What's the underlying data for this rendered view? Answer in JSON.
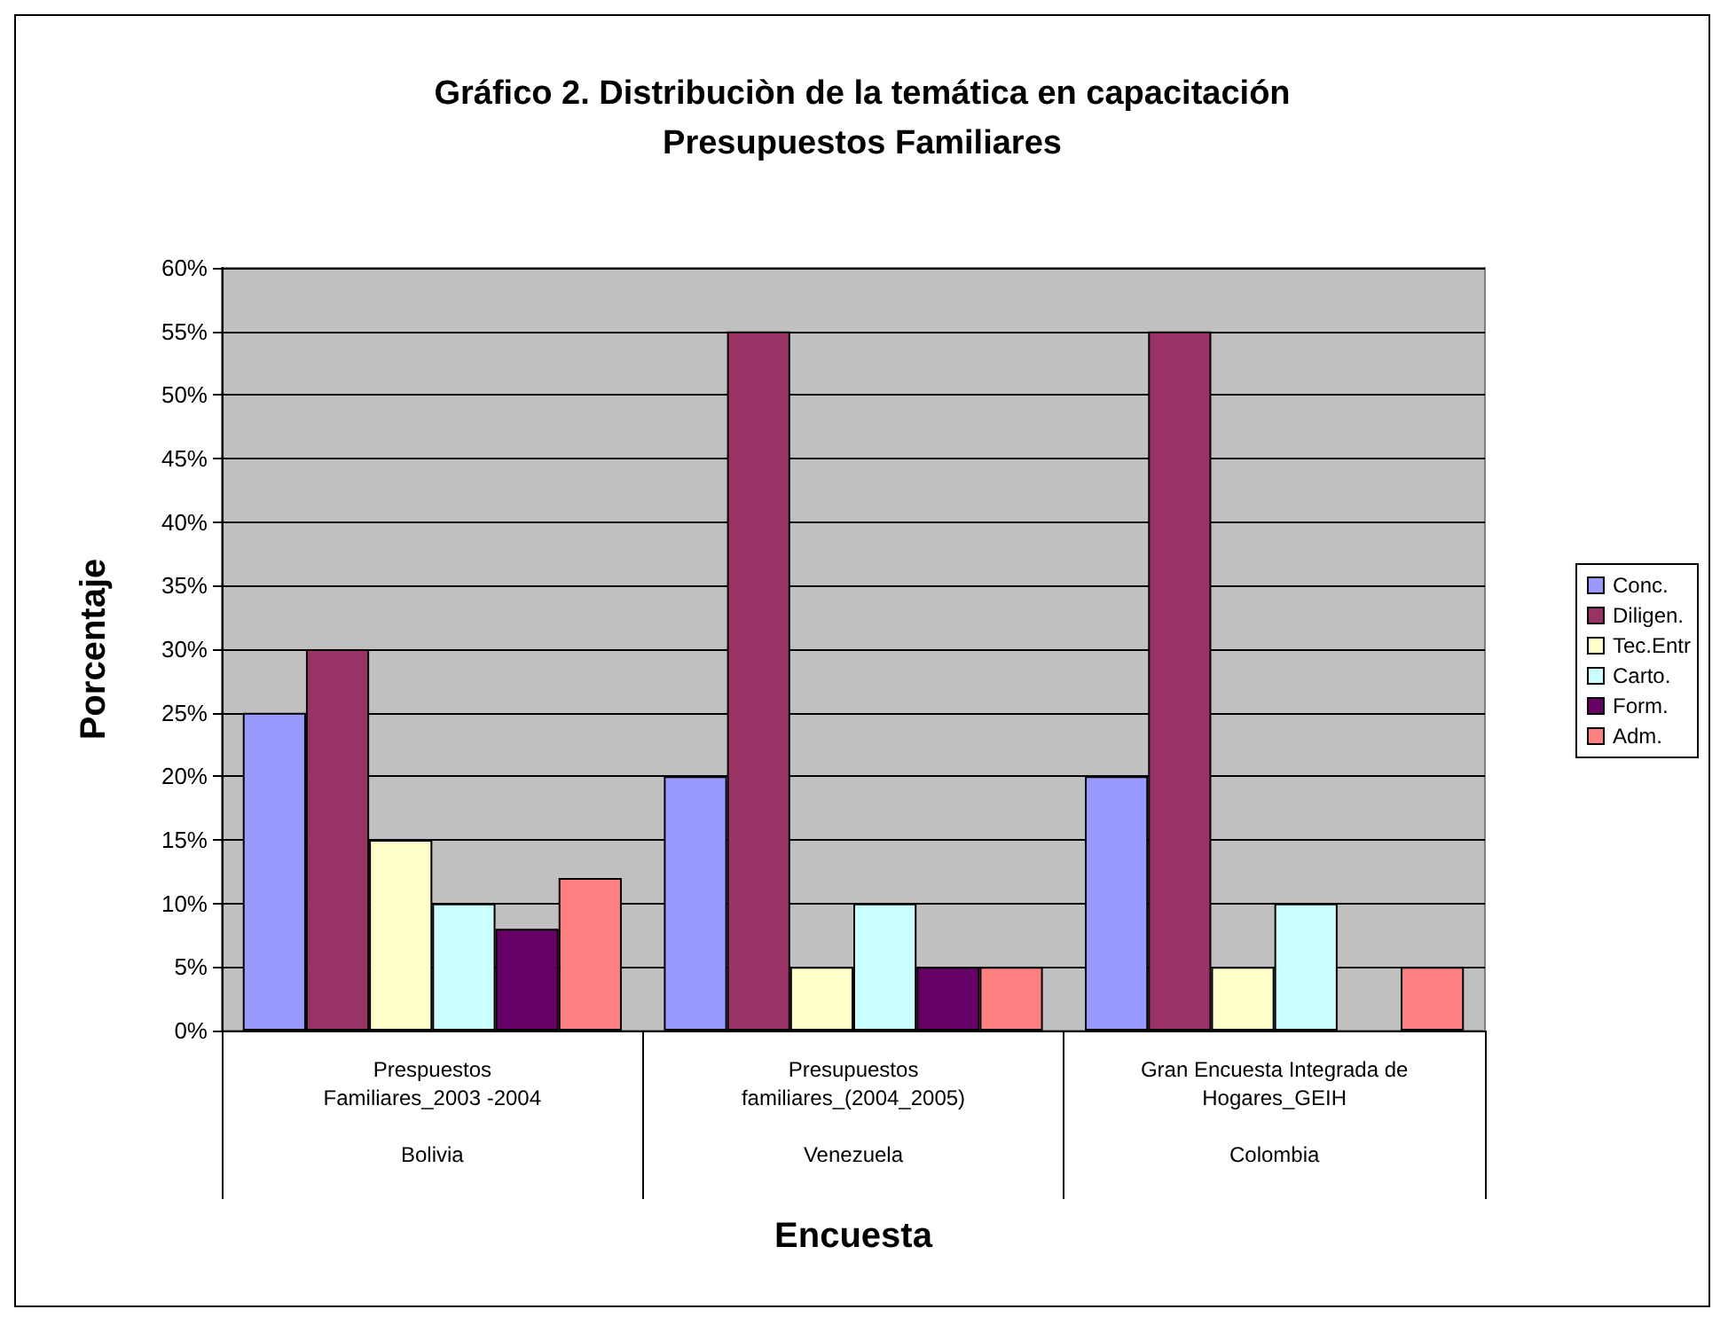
{
  "chart_data": {
    "type": "bar",
    "title": "Gráfico 2. Distribuciòn de la temática en capacitación\nPresupuestos Familiares",
    "xlabel": "Encuesta",
    "ylabel": "Porcentaje",
    "categories": [
      "Prespuestos\nFamiliares_2003 -2004\nBolivia",
      "Presupuestos\nfamiliares_(2004_2005)\nVenezuela",
      "Gran Encuesta Integrada de\nHogares_GEIH\nColombia"
    ],
    "series": [
      {
        "name": "Conc.",
        "color": "#9999ff",
        "values": [
          25,
          20,
          20
        ]
      },
      {
        "name": "Diligen.",
        "color": "#993366",
        "values": [
          30,
          55,
          55
        ]
      },
      {
        "name": "Tec.Entr",
        "color": "#ffffcc",
        "values": [
          15,
          5,
          5
        ]
      },
      {
        "name": "Carto.",
        "color": "#ccffff",
        "values": [
          10,
          10,
          10
        ]
      },
      {
        "name": "Form.",
        "color": "#660066",
        "values": [
          8,
          5,
          null
        ]
      },
      {
        "name": "Adm.",
        "color": "#ff8080",
        "values": [
          12,
          5,
          5
        ]
      }
    ],
    "ylim": [
      0,
      60
    ],
    "yticks": [
      {
        "value": 0,
        "label": "0%"
      },
      {
        "value": 5,
        "label": "5%"
      },
      {
        "value": 10,
        "label": "10%"
      },
      {
        "value": 15,
        "label": "15%"
      },
      {
        "value": 20,
        "label": "20%"
      },
      {
        "value": 25,
        "label": "25%"
      },
      {
        "value": 30,
        "label": "30%"
      },
      {
        "value": 35,
        "label": "35%"
      },
      {
        "value": 40,
        "label": "40%"
      },
      {
        "value": 45,
        "label": "45%"
      },
      {
        "value": 50,
        "label": "50%"
      },
      {
        "value": 55,
        "label": "55%"
      },
      {
        "value": 60,
        "label": "60%"
      }
    ],
    "grid": "y",
    "legend": "right"
  }
}
